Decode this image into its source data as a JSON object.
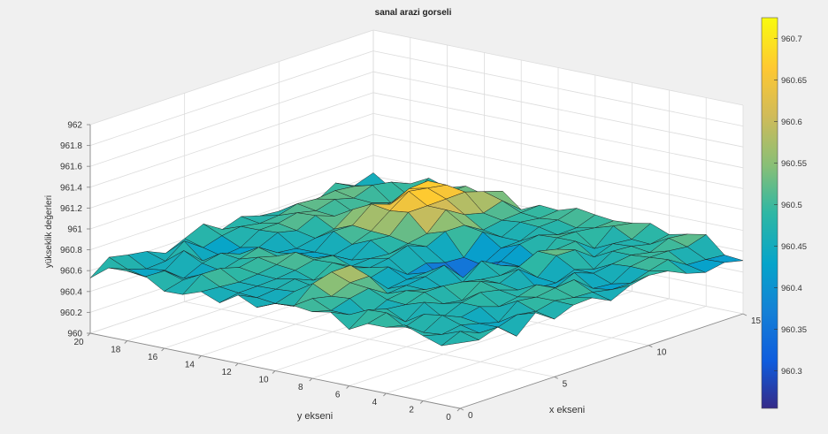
{
  "chart_data": {
    "type": "surface",
    "title": "sanal arazi gorseli",
    "xlabel": "x ekseni",
    "ylabel": "y ekseni",
    "zlabel": "yükseklik değerleri",
    "x_range": [
      0,
      15
    ],
    "y_range": [
      0,
      20
    ],
    "z_range": [
      960,
      962
    ],
    "x_ticks": [
      "0",
      "5",
      "10",
      "15"
    ],
    "y_ticks": [
      "0",
      "2",
      "4",
      "6",
      "8",
      "10",
      "12",
      "14",
      "16",
      "18",
      "20"
    ],
    "z_ticks": [
      "960",
      "960.2",
      "960.4",
      "960.6",
      "960.8",
      "961",
      "961.2",
      "961.4",
      "961.6",
      "961.8",
      "962"
    ],
    "colorbar": {
      "colormap": "parula",
      "range": [
        960.255,
        960.725
      ],
      "ticks": [
        "960.3",
        "960.35",
        "960.4",
        "960.45",
        "960.5",
        "960.55",
        "960.6",
        "960.65",
        "960.7"
      ]
    },
    "grid": true
  }
}
